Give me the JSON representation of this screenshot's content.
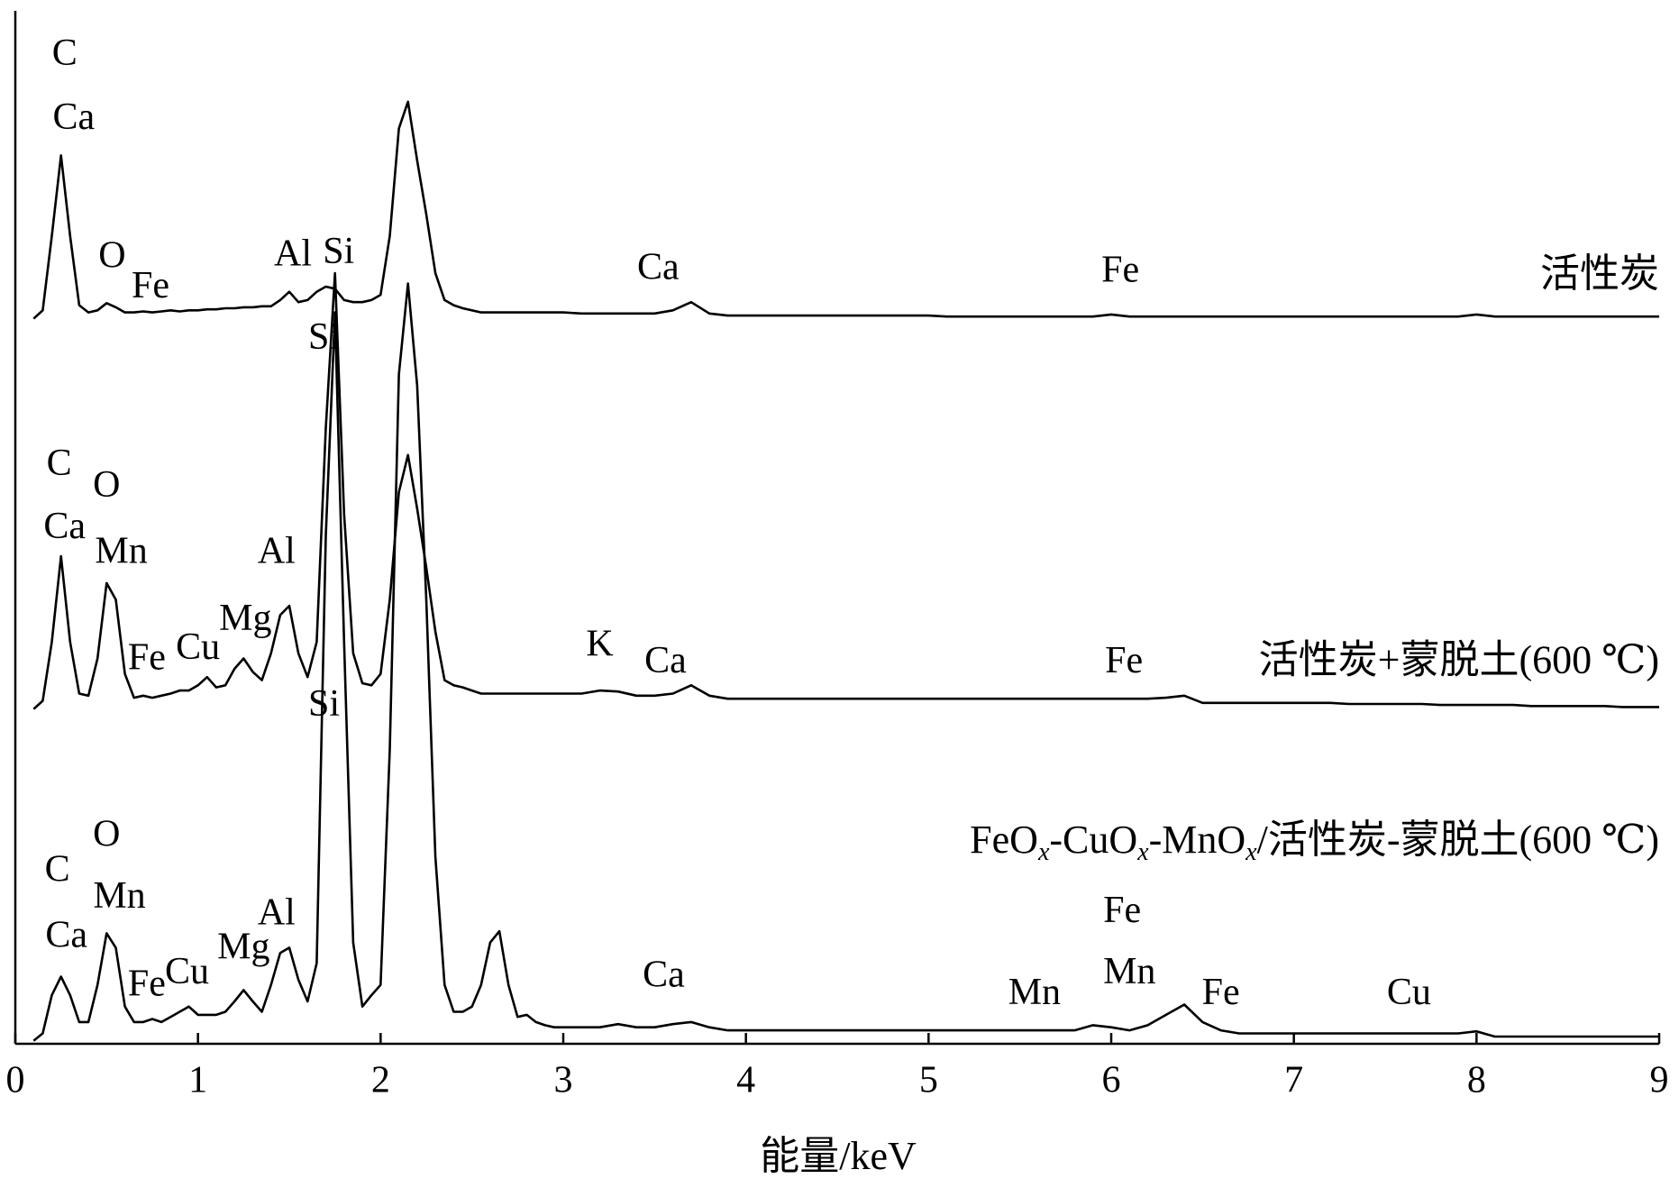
{
  "chart_data": {
    "type": "line",
    "xlabel": "能量/keV",
    "xlim": [
      0,
      9
    ],
    "ylim": [
      0,
      100
    ],
    "xticks": [
      0,
      1,
      2,
      3,
      4,
      5,
      6,
      7,
      8,
      9
    ],
    "x": [
      0.1,
      0.15,
      0.2,
      0.25,
      0.3,
      0.35,
      0.4,
      0.45,
      0.5,
      0.55,
      0.6,
      0.65,
      0.7,
      0.75,
      0.8,
      0.85,
      0.9,
      0.95,
      1.0,
      1.05,
      1.1,
      1.15,
      1.2,
      1.25,
      1.3,
      1.35,
      1.4,
      1.45,
      1.5,
      1.55,
      1.6,
      1.65,
      1.7,
      1.75,
      1.8,
      1.85,
      1.9,
      1.95,
      2.0,
      2.05,
      2.1,
      2.15,
      2.2,
      2.25,
      2.3,
      2.35,
      2.4,
      2.45,
      2.5,
      2.55,
      2.6,
      2.65,
      2.7,
      2.75,
      2.8,
      2.85,
      2.9,
      2.95,
      3.0,
      3.1,
      3.2,
      3.3,
      3.4,
      3.5,
      3.6,
      3.7,
      3.8,
      3.9,
      4.0,
      4.1,
      4.2,
      4.3,
      4.4,
      4.5,
      4.6,
      4.7,
      4.8,
      4.9,
      5.0,
      5.1,
      5.2,
      5.3,
      5.4,
      5.5,
      5.6,
      5.7,
      5.8,
      5.9,
      6.0,
      6.1,
      6.2,
      6.3,
      6.4,
      6.5,
      6.6,
      6.7,
      6.8,
      6.9,
      7.0,
      7.1,
      7.2,
      7.3,
      7.4,
      7.5,
      7.6,
      7.7,
      7.8,
      7.9,
      8.0,
      8.1,
      8.2,
      8.3,
      8.4,
      8.5,
      8.6,
      8.7,
      8.8,
      8.9,
      9.0
    ],
    "series": [
      {
        "name": "活性炭",
        "color": "#000000",
        "values": [
          70.2,
          71.0,
          78.2,
          86.0,
          78.2,
          71.5,
          70.8,
          71.0,
          71.7,
          71.3,
          70.8,
          70.8,
          70.9,
          70.8,
          70.9,
          71.0,
          70.9,
          71.0,
          71.0,
          71.1,
          71.1,
          71.2,
          71.2,
          71.3,
          71.3,
          71.4,
          71.4,
          72.0,
          72.8,
          71.8,
          72.0,
          72.8,
          73.3,
          73.1,
          72.0,
          71.8,
          71.8,
          72.0,
          72.5,
          78.2,
          88.6,
          91.2,
          85.5,
          80.3,
          74.6,
          72.0,
          71.5,
          71.2,
          71.0,
          70.8,
          70.8,
          70.8,
          70.8,
          70.8,
          70.8,
          70.8,
          70.8,
          70.8,
          70.8,
          70.7,
          70.7,
          70.7,
          70.7,
          70.7,
          71.0,
          71.8,
          70.7,
          70.5,
          70.5,
          70.5,
          70.5,
          70.5,
          70.5,
          70.5,
          70.5,
          70.5,
          70.5,
          70.5,
          70.5,
          70.4,
          70.4,
          70.4,
          70.4,
          70.4,
          70.4,
          70.4,
          70.4,
          70.4,
          70.6,
          70.4,
          70.4,
          70.4,
          70.4,
          70.4,
          70.4,
          70.4,
          70.4,
          70.4,
          70.4,
          70.4,
          70.4,
          70.4,
          70.4,
          70.4,
          70.4,
          70.4,
          70.4,
          70.4,
          70.6,
          70.4,
          70.4,
          70.4,
          70.4,
          70.4,
          70.4,
          70.4,
          70.4,
          70.4,
          70.4
        ]
      },
      {
        "name": "活性炭+蒙脱土(600 ℃)",
        "color": "#000000",
        "values": [
          32.4,
          33.2,
          38.9,
          47.2,
          38.9,
          33.9,
          33.7,
          37.3,
          44.6,
          43.0,
          35.8,
          33.5,
          33.7,
          33.5,
          33.7,
          33.9,
          34.2,
          34.2,
          34.7,
          35.5,
          34.5,
          34.7,
          36.3,
          37.3,
          36.0,
          35.2,
          37.8,
          41.5,
          42.4,
          37.8,
          35.5,
          38.9,
          59.6,
          74.6,
          51.3,
          37.8,
          34.9,
          34.7,
          35.8,
          43.0,
          53.4,
          57.0,
          51.8,
          46.1,
          39.9,
          35.2,
          34.7,
          34.5,
          34.2,
          33.9,
          33.9,
          33.9,
          33.9,
          33.9,
          33.9,
          33.9,
          33.9,
          33.9,
          33.9,
          33.9,
          34.2,
          34.1,
          33.7,
          33.7,
          33.9,
          34.7,
          33.7,
          33.4,
          33.4,
          33.4,
          33.4,
          33.4,
          33.4,
          33.4,
          33.4,
          33.4,
          33.4,
          33.4,
          33.4,
          33.4,
          33.4,
          33.4,
          33.4,
          33.4,
          33.4,
          33.4,
          33.4,
          33.4,
          33.4,
          33.4,
          33.4,
          33.5,
          33.7,
          33.0,
          33.0,
          33.0,
          33.0,
          33.0,
          33.0,
          33.0,
          33.0,
          32.9,
          32.9,
          32.9,
          32.9,
          32.9,
          32.8,
          32.8,
          32.8,
          32.8,
          32.8,
          32.7,
          32.7,
          32.7,
          32.7,
          32.7,
          32.6,
          32.6,
          32.6
        ]
      },
      {
        "name": "FeOx-CuOx-MnOx/活性炭-蒙脱土(600 ℃)",
        "color": "#000000",
        "values": [
          0.3,
          1.0,
          4.7,
          6.5,
          4.7,
          2.1,
          2.1,
          5.7,
          10.7,
          9.3,
          3.6,
          2.1,
          2.1,
          2.4,
          2.1,
          2.6,
          3.1,
          3.6,
          2.8,
          2.8,
          2.8,
          3.1,
          4.1,
          5.2,
          4.1,
          3.1,
          5.7,
          8.8,
          9.3,
          6.2,
          4.1,
          7.8,
          49.2,
          70.8,
          38.9,
          9.8,
          3.6,
          4.7,
          5.7,
          28.5,
          64.8,
          73.6,
          63.7,
          43.0,
          18.1,
          5.7,
          3.1,
          3.1,
          3.6,
          5.7,
          9.8,
          10.9,
          5.7,
          2.6,
          2.8,
          2.1,
          1.8,
          1.6,
          1.6,
          1.6,
          1.6,
          1.9,
          1.6,
          1.6,
          1.9,
          2.1,
          1.6,
          1.3,
          1.3,
          1.3,
          1.3,
          1.3,
          1.3,
          1.3,
          1.3,
          1.3,
          1.3,
          1.3,
          1.3,
          1.3,
          1.3,
          1.3,
          1.3,
          1.3,
          1.3,
          1.3,
          1.3,
          1.8,
          1.6,
          1.3,
          1.8,
          2.8,
          3.8,
          2.1,
          1.3,
          1.0,
          1.0,
          1.0,
          1.0,
          1.0,
          1.0,
          1.0,
          1.0,
          1.0,
          1.0,
          1.0,
          1.0,
          1.0,
          1.2,
          0.7,
          0.7,
          0.7,
          0.7,
          0.7,
          0.7,
          0.7,
          0.7,
          0.7,
          0.7
        ]
      }
    ],
    "annotations": [
      {
        "text": "C",
        "x": 0.27,
        "y": 95.6
      },
      {
        "text": "Ca",
        "x": 0.32,
        "y": 89.4
      },
      {
        "text": "O",
        "x": 0.53,
        "y": 76.0
      },
      {
        "text": "Fe",
        "x": 0.74,
        "y": 73.1
      },
      {
        "text": "Al",
        "x": 1.52,
        "y": 76.2
      },
      {
        "text": "Si",
        "x": 1.77,
        "y": 76.4
      },
      {
        "text": "Ca",
        "x": 3.52,
        "y": 74.9
      },
      {
        "text": "Fe",
        "x": 6.05,
        "y": 74.6
      },
      {
        "text": "Si",
        "x": 1.69,
        "y": 68.1
      },
      {
        "text": "C",
        "x": 0.24,
        "y": 55.9
      },
      {
        "text": "O",
        "x": 0.5,
        "y": 53.8
      },
      {
        "text": "Ca",
        "x": 0.27,
        "y": 49.8
      },
      {
        "text": "Mn",
        "x": 0.58,
        "y": 47.4
      },
      {
        "text": "Al",
        "x": 1.43,
        "y": 47.4
      },
      {
        "text": "Mg",
        "x": 1.26,
        "y": 40.9
      },
      {
        "text": "Cu",
        "x": 1.0,
        "y": 38.1
      },
      {
        "text": "Fe",
        "x": 0.72,
        "y": 37.1
      },
      {
        "text": "K",
        "x": 3.2,
        "y": 38.4
      },
      {
        "text": "Ca",
        "x": 3.56,
        "y": 36.8
      },
      {
        "text": "Fe",
        "x": 6.07,
        "y": 36.8
      },
      {
        "text": "Si",
        "x": 1.69,
        "y": 32.6
      },
      {
        "text": "O",
        "x": 0.5,
        "y": 20.0
      },
      {
        "text": "C",
        "x": 0.23,
        "y": 16.6
      },
      {
        "text": "Mn",
        "x": 0.57,
        "y": 14.0
      },
      {
        "text": "Ca",
        "x": 0.28,
        "y": 10.2
      },
      {
        "text": "Al",
        "x": 1.43,
        "y": 12.4
      },
      {
        "text": "Mg",
        "x": 1.25,
        "y": 9.1
      },
      {
        "text": "Cu",
        "x": 0.94,
        "y": 6.7
      },
      {
        "text": "Fe",
        "x": 0.72,
        "y": 5.5
      },
      {
        "text": "Ca",
        "x": 3.55,
        "y": 6.4
      },
      {
        "text": "Fe",
        "x": 6.06,
        "y": 12.6
      },
      {
        "text": "Mn",
        "x": 6.1,
        "y": 6.7
      },
      {
        "text": "Mn",
        "x": 5.58,
        "y": 4.7
      },
      {
        "text": "Fe",
        "x": 6.6,
        "y": 4.7
      },
      {
        "text": "Cu",
        "x": 7.63,
        "y": 4.7
      }
    ]
  }
}
